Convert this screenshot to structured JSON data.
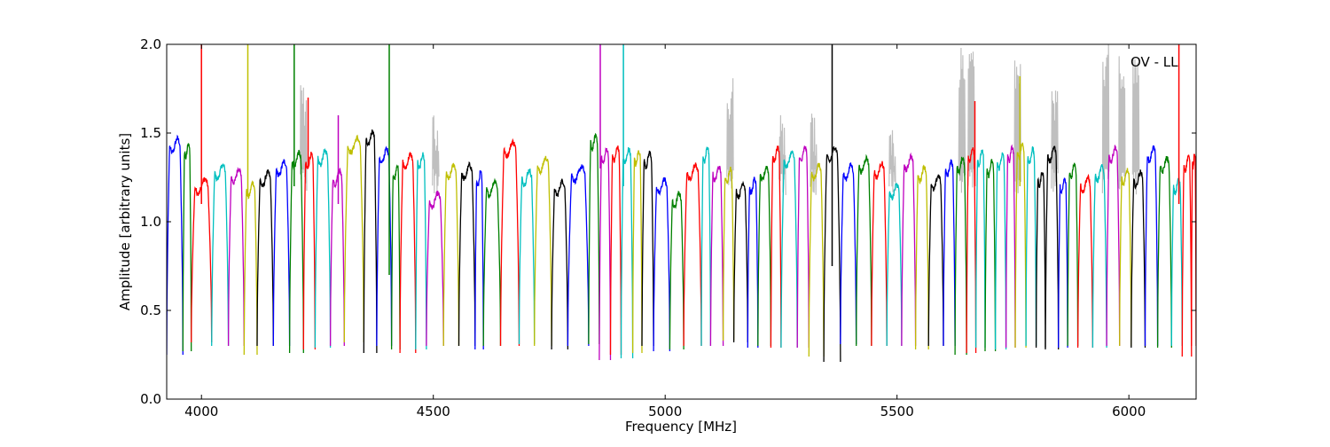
{
  "chart_data": {
    "type": "line",
    "title": "",
    "annotation": "OV - LL",
    "xlabel": "Frequency [MHz]",
    "ylabel": "Amplitude [arbitrary units]",
    "xlim": [
      3925,
      6145
    ],
    "ylim": [
      0.0,
      2.0
    ],
    "xticks": [
      4000,
      4500,
      5000,
      5500,
      6000
    ],
    "xtick_labels": [
      "4000",
      "4500",
      "5000",
      "5500",
      "6000"
    ],
    "yticks": [
      0.0,
      0.5,
      1.0,
      1.5,
      2.0
    ],
    "ytick_labels": [
      "0.0",
      "0.5",
      "1.0",
      "1.5",
      "2.0"
    ],
    "grid": false,
    "legend": "none",
    "background_series_color": "#bfbfbf",
    "series_colors": [
      "#0000ff",
      "#008000",
      "#ff0000",
      "#00bfbf",
      "#bf00bf",
      "#bfbf00",
      "#000000"
    ],
    "channels": [
      {
        "start": 3925,
        "end": 3960,
        "top": 1.43,
        "low": 0.25,
        "color": "#0000ff"
      },
      {
        "start": 3960,
        "end": 3978,
        "top": 1.4,
        "low": 0.27,
        "color": "#008000"
      },
      {
        "start": 3978,
        "end": 4022,
        "top": 1.2,
        "low": 0.32,
        "color": "#ff0000"
      },
      {
        "start": 4022,
        "end": 4058,
        "top": 1.28,
        "low": 0.3,
        "color": "#00bfbf"
      },
      {
        "start": 4058,
        "end": 4092,
        "top": 1.26,
        "low": 0.3,
        "color": "#bf00bf"
      },
      {
        "start": 4092,
        "end": 4120,
        "top": 1.18,
        "low": 0.25,
        "color": "#bfbf00"
      },
      {
        "start": 4120,
        "end": 4155,
        "top": 1.24,
        "low": 0.3,
        "color": "#000000"
      },
      {
        "start": 4155,
        "end": 4190,
        "top": 1.3,
        "low": 0.3,
        "color": "#0000ff"
      },
      {
        "start": 4190,
        "end": 4220,
        "top": 1.35,
        "low": 0.26,
        "color": "#008000"
      },
      {
        "start": 4220,
        "end": 4245,
        "top": 1.34,
        "low": 0.28,
        "color": "#ff0000"
      },
      {
        "start": 4245,
        "end": 4278,
        "top": 1.36,
        "low": 0.29,
        "color": "#00bfbf"
      },
      {
        "start": 4278,
        "end": 4308,
        "top": 1.25,
        "low": 0.3,
        "color": "#bf00bf"
      },
      {
        "start": 4308,
        "end": 4350,
        "top": 1.43,
        "low": 0.32,
        "color": "#bfbf00"
      },
      {
        "start": 4350,
        "end": 4378,
        "top": 1.47,
        "low": 0.26,
        "color": "#000000"
      },
      {
        "start": 4378,
        "end": 4410,
        "top": 1.37,
        "low": 0.3,
        "color": "#0000ff"
      },
      {
        "start": 4410,
        "end": 4428,
        "top": 1.28,
        "low": 0.28,
        "color": "#008000"
      },
      {
        "start": 4428,
        "end": 4462,
        "top": 1.34,
        "low": 0.26,
        "color": "#ff0000"
      },
      {
        "start": 4462,
        "end": 4485,
        "top": 1.34,
        "low": 0.28,
        "color": "#00bfbf"
      },
      {
        "start": 4485,
        "end": 4522,
        "top": 1.12,
        "low": 0.3,
        "color": "#bf00bf"
      },
      {
        "start": 4522,
        "end": 4555,
        "top": 1.28,
        "low": 0.3,
        "color": "#bfbf00"
      },
      {
        "start": 4555,
        "end": 4590,
        "top": 1.28,
        "low": 0.3,
        "color": "#000000"
      },
      {
        "start": 4590,
        "end": 4608,
        "top": 1.24,
        "low": 0.28,
        "color": "#0000ff"
      },
      {
        "start": 4608,
        "end": 4645,
        "top": 1.19,
        "low": 0.3,
        "color": "#008000"
      },
      {
        "start": 4645,
        "end": 4685,
        "top": 1.41,
        "low": 0.3,
        "color": "#ff0000"
      },
      {
        "start": 4685,
        "end": 4718,
        "top": 1.25,
        "low": 0.31,
        "color": "#00bfbf"
      },
      {
        "start": 4718,
        "end": 4755,
        "top": 1.32,
        "low": 0.3,
        "color": "#bfbf00"
      },
      {
        "start": 4755,
        "end": 4790,
        "top": 1.19,
        "low": 0.28,
        "color": "#000000"
      },
      {
        "start": 4790,
        "end": 4835,
        "top": 1.27,
        "low": 0.3,
        "color": "#0000ff"
      },
      {
        "start": 4835,
        "end": 4858,
        "top": 1.45,
        "low": 0.31,
        "color": "#008000"
      },
      {
        "start": 4858,
        "end": 4882,
        "top": 1.37,
        "low": 0.22,
        "color": "#bf00bf"
      },
      {
        "start": 4882,
        "end": 4905,
        "top": 1.38,
        "low": 0.25,
        "color": "#ff0000"
      },
      {
        "start": 4905,
        "end": 4930,
        "top": 1.37,
        "low": 0.23,
        "color": "#00bfbf"
      },
      {
        "start": 4930,
        "end": 4950,
        "top": 1.36,
        "low": 0.26,
        "color": "#bfbf00"
      },
      {
        "start": 4950,
        "end": 4975,
        "top": 1.35,
        "low": 0.3,
        "color": "#000000"
      },
      {
        "start": 4975,
        "end": 5010,
        "top": 1.2,
        "low": 0.27,
        "color": "#0000ff"
      },
      {
        "start": 5010,
        "end": 5040,
        "top": 1.12,
        "low": 0.28,
        "color": "#008000"
      },
      {
        "start": 5040,
        "end": 5078,
        "top": 1.28,
        "low": 0.3,
        "color": "#ff0000"
      },
      {
        "start": 5078,
        "end": 5098,
        "top": 1.38,
        "low": 0.3,
        "color": "#00bfbf"
      },
      {
        "start": 5098,
        "end": 5125,
        "top": 1.27,
        "low": 0.3,
        "color": "#bf00bf"
      },
      {
        "start": 5125,
        "end": 5148,
        "top": 1.26,
        "low": 0.33,
        "color": "#bfbf00"
      },
      {
        "start": 5148,
        "end": 5178,
        "top": 1.18,
        "low": 0.32,
        "color": "#000000"
      },
      {
        "start": 5178,
        "end": 5200,
        "top": 1.2,
        "low": 0.29,
        "color": "#0000ff"
      },
      {
        "start": 5200,
        "end": 5228,
        "top": 1.27,
        "low": 0.3,
        "color": "#008000"
      },
      {
        "start": 5228,
        "end": 5250,
        "top": 1.38,
        "low": 0.29,
        "color": "#ff0000"
      },
      {
        "start": 5250,
        "end": 5285,
        "top": 1.35,
        "low": 0.29,
        "color": "#00bfbf"
      },
      {
        "start": 5285,
        "end": 5310,
        "top": 1.38,
        "low": 0.29,
        "color": "#bf00bf"
      },
      {
        "start": 5310,
        "end": 5342,
        "top": 1.28,
        "low": 0.24,
        "color": "#bfbf00"
      },
      {
        "start": 5342,
        "end": 5378,
        "top": 1.38,
        "low": 0.21,
        "color": "#000000"
      },
      {
        "start": 5378,
        "end": 5412,
        "top": 1.28,
        "low": 0.31,
        "color": "#0000ff"
      },
      {
        "start": 5412,
        "end": 5445,
        "top": 1.32,
        "low": 0.3,
        "color": "#008000"
      },
      {
        "start": 5445,
        "end": 5478,
        "top": 1.29,
        "low": 0.3,
        "color": "#ff0000"
      },
      {
        "start": 5478,
        "end": 5510,
        "top": 1.17,
        "low": 0.3,
        "color": "#00bfbf"
      },
      {
        "start": 5510,
        "end": 5540,
        "top": 1.33,
        "low": 0.3,
        "color": "#bf00bf"
      },
      {
        "start": 5540,
        "end": 5568,
        "top": 1.27,
        "low": 0.28,
        "color": "#bfbf00"
      },
      {
        "start": 5568,
        "end": 5600,
        "top": 1.22,
        "low": 0.3,
        "color": "#000000"
      },
      {
        "start": 5600,
        "end": 5625,
        "top": 1.3,
        "low": 0.3,
        "color": "#0000ff"
      },
      {
        "start": 5625,
        "end": 5650,
        "top": 1.32,
        "low": 0.25,
        "color": "#008000"
      },
      {
        "start": 5650,
        "end": 5670,
        "top": 1.38,
        "low": 0.26,
        "color": "#ff0000"
      },
      {
        "start": 5670,
        "end": 5690,
        "top": 1.36,
        "low": 0.29,
        "color": "#00bfbf"
      },
      {
        "start": 5690,
        "end": 5712,
        "top": 1.3,
        "low": 0.27,
        "color": "#008000"
      },
      {
        "start": 5712,
        "end": 5735,
        "top": 1.34,
        "low": 0.28,
        "color": "#00bfbf"
      },
      {
        "start": 5735,
        "end": 5755,
        "top": 1.38,
        "low": 0.29,
        "color": "#bf00bf"
      },
      {
        "start": 5755,
        "end": 5778,
        "top": 1.4,
        "low": 0.29,
        "color": "#bfbf00"
      },
      {
        "start": 5778,
        "end": 5800,
        "top": 1.37,
        "low": 0.3,
        "color": "#00bfbf"
      },
      {
        "start": 5800,
        "end": 5820,
        "top": 1.24,
        "low": 0.29,
        "color": "#000000"
      },
      {
        "start": 5820,
        "end": 5848,
        "top": 1.38,
        "low": 0.28,
        "color": "#000000"
      },
      {
        "start": 5848,
        "end": 5868,
        "top": 1.2,
        "low": 0.29,
        "color": "#0000ff"
      },
      {
        "start": 5868,
        "end": 5890,
        "top": 1.29,
        "low": 0.3,
        "color": "#008000"
      },
      {
        "start": 5890,
        "end": 5922,
        "top": 1.21,
        "low": 0.29,
        "color": "#ff0000"
      },
      {
        "start": 5922,
        "end": 5952,
        "top": 1.27,
        "low": 0.29,
        "color": "#00bfbf"
      },
      {
        "start": 5952,
        "end": 5980,
        "top": 1.38,
        "low": 0.3,
        "color": "#bf00bf"
      },
      {
        "start": 5980,
        "end": 6005,
        "top": 1.25,
        "low": 0.3,
        "color": "#bfbf00"
      },
      {
        "start": 6005,
        "end": 6035,
        "top": 1.24,
        "low": 0.29,
        "color": "#000000"
      },
      {
        "start": 6035,
        "end": 6062,
        "top": 1.38,
        "low": 0.3,
        "color": "#0000ff"
      },
      {
        "start": 6062,
        "end": 6092,
        "top": 1.32,
        "low": 0.29,
        "color": "#008000"
      },
      {
        "start": 6092,
        "end": 6115,
        "top": 1.2,
        "low": 0.3,
        "color": "#00bfbf"
      },
      {
        "start": 6115,
        "end": 6135,
        "top": 1.33,
        "low": 0.24,
        "color": "#ff0000"
      },
      {
        "start": 6135,
        "end": 6145,
        "top": 1.35,
        "low": 0.3,
        "color": "#ff0000"
      }
    ],
    "spikes": [
      {
        "x": 4000,
        "y0": 1.1,
        "y1": 2.0,
        "color": "#ff0000"
      },
      {
        "x": 4100,
        "y0": 1.15,
        "y1": 2.0,
        "color": "#bfbf00"
      },
      {
        "x": 4200,
        "y0": 1.2,
        "y1": 2.0,
        "color": "#008000"
      },
      {
        "x": 4230,
        "y0": 1.3,
        "y1": 1.7,
        "color": "#ff0000"
      },
      {
        "x": 4295,
        "y0": 1.1,
        "y1": 1.6,
        "color": "#bf00bf"
      },
      {
        "x": 4405,
        "y0": 0.7,
        "y1": 2.0,
        "color": "#008000"
      },
      {
        "x": 4860,
        "y0": 1.3,
        "y1": 2.0,
        "color": "#bf00bf"
      },
      {
        "x": 4910,
        "y0": 1.2,
        "y1": 2.0,
        "color": "#00bfbf"
      },
      {
        "x": 5360,
        "y0": 0.75,
        "y1": 2.0,
        "color": "#000000"
      },
      {
        "x": 5668,
        "y0": 1.2,
        "y1": 1.68,
        "color": "#ff0000"
      },
      {
        "x": 5765,
        "y0": 1.2,
        "y1": 1.82,
        "color": "#bfbf00"
      },
      {
        "x": 6108,
        "y0": 1.1,
        "y1": 2.0,
        "color": "#ff0000"
      }
    ],
    "background_bursts": [
      {
        "x": 4220,
        "top": 1.78
      },
      {
        "x": 4505,
        "top": 1.62
      },
      {
        "x": 5140,
        "top": 1.82
      },
      {
        "x": 5253,
        "top": 1.62
      },
      {
        "x": 5320,
        "top": 1.62
      },
      {
        "x": 5490,
        "top": 1.55
      },
      {
        "x": 5640,
        "top": 2.0
      },
      {
        "x": 5660,
        "top": 2.0
      },
      {
        "x": 5760,
        "top": 2.0
      },
      {
        "x": 5840,
        "top": 1.8
      },
      {
        "x": 5950,
        "top": 2.0
      },
      {
        "x": 5985,
        "top": 2.0
      },
      {
        "x": 6015,
        "top": 2.0
      }
    ]
  }
}
